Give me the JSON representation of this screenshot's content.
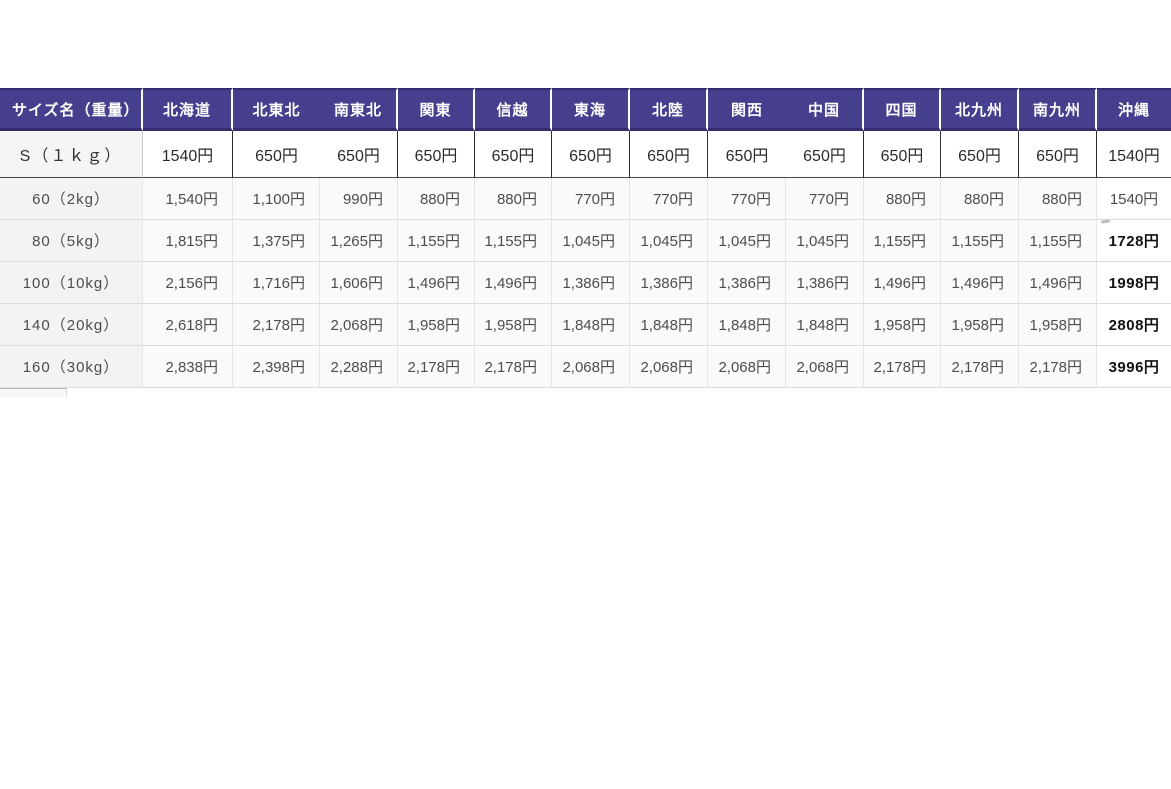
{
  "colors": {
    "header_bg": "#453f8e",
    "header_border": "#322d6e",
    "header_text": "#ffffff",
    "body_text": "#4d4d4d",
    "patched_text": "#2b2b2b"
  },
  "table": {
    "header": {
      "size_label": "サイズ名（重量）",
      "regions": [
        "北海道",
        "北東北",
        "南東北",
        "関東",
        "信越",
        "東海",
        "北陸",
        "関西",
        "中国",
        "四国",
        "北九州",
        "南九州",
        "沖縄"
      ]
    },
    "rows": [
      {
        "label": "S（１ｋｇ）",
        "patched": true,
        "okinawa_bold": false,
        "values": [
          "1540円",
          "650円",
          "650円",
          "650円",
          "650円",
          "650円",
          "650円",
          "650円",
          "650円",
          "650円",
          "650円",
          "650円",
          "1540円"
        ]
      },
      {
        "label": "60（2kg）",
        "patched": false,
        "okinawa_bold": false,
        "values": [
          "1,540円",
          "1,100円",
          "990円",
          "880円",
          "880円",
          "770円",
          "770円",
          "770円",
          "770円",
          "880円",
          "880円",
          "880円",
          "1540円"
        ]
      },
      {
        "label": "80（5kg）",
        "patched": false,
        "okinawa_bold": true,
        "values": [
          "1,815円",
          "1,375円",
          "1,265円",
          "1,155円",
          "1,155円",
          "1,045円",
          "1,045円",
          "1,045円",
          "1,045円",
          "1,155円",
          "1,155円",
          "1,155円",
          "1728円"
        ]
      },
      {
        "label": "100（10kg）",
        "patched": false,
        "okinawa_bold": true,
        "values": [
          "2,156円",
          "1,716円",
          "1,606円",
          "1,496円",
          "1,496円",
          "1,386円",
          "1,386円",
          "1,386円",
          "1,386円",
          "1,496円",
          "1,496円",
          "1,496円",
          "1998円"
        ]
      },
      {
        "label": "140（20kg）",
        "patched": false,
        "okinawa_bold": true,
        "values": [
          "2,618円",
          "2,178円",
          "2,068円",
          "1,958円",
          "1,958円",
          "1,848円",
          "1,848円",
          "1,848円",
          "1,848円",
          "1,958円",
          "1,958円",
          "1,958円",
          "2808円"
        ]
      },
      {
        "label": "160（30kg）",
        "patched": false,
        "okinawa_bold": true,
        "values": [
          "2,838円",
          "2,398円",
          "2,288円",
          "2,178円",
          "2,178円",
          "2,068円",
          "2,068円",
          "2,068円",
          "2,068円",
          "2,178円",
          "2,178円",
          "2,178円",
          "3996円"
        ]
      }
    ]
  }
}
